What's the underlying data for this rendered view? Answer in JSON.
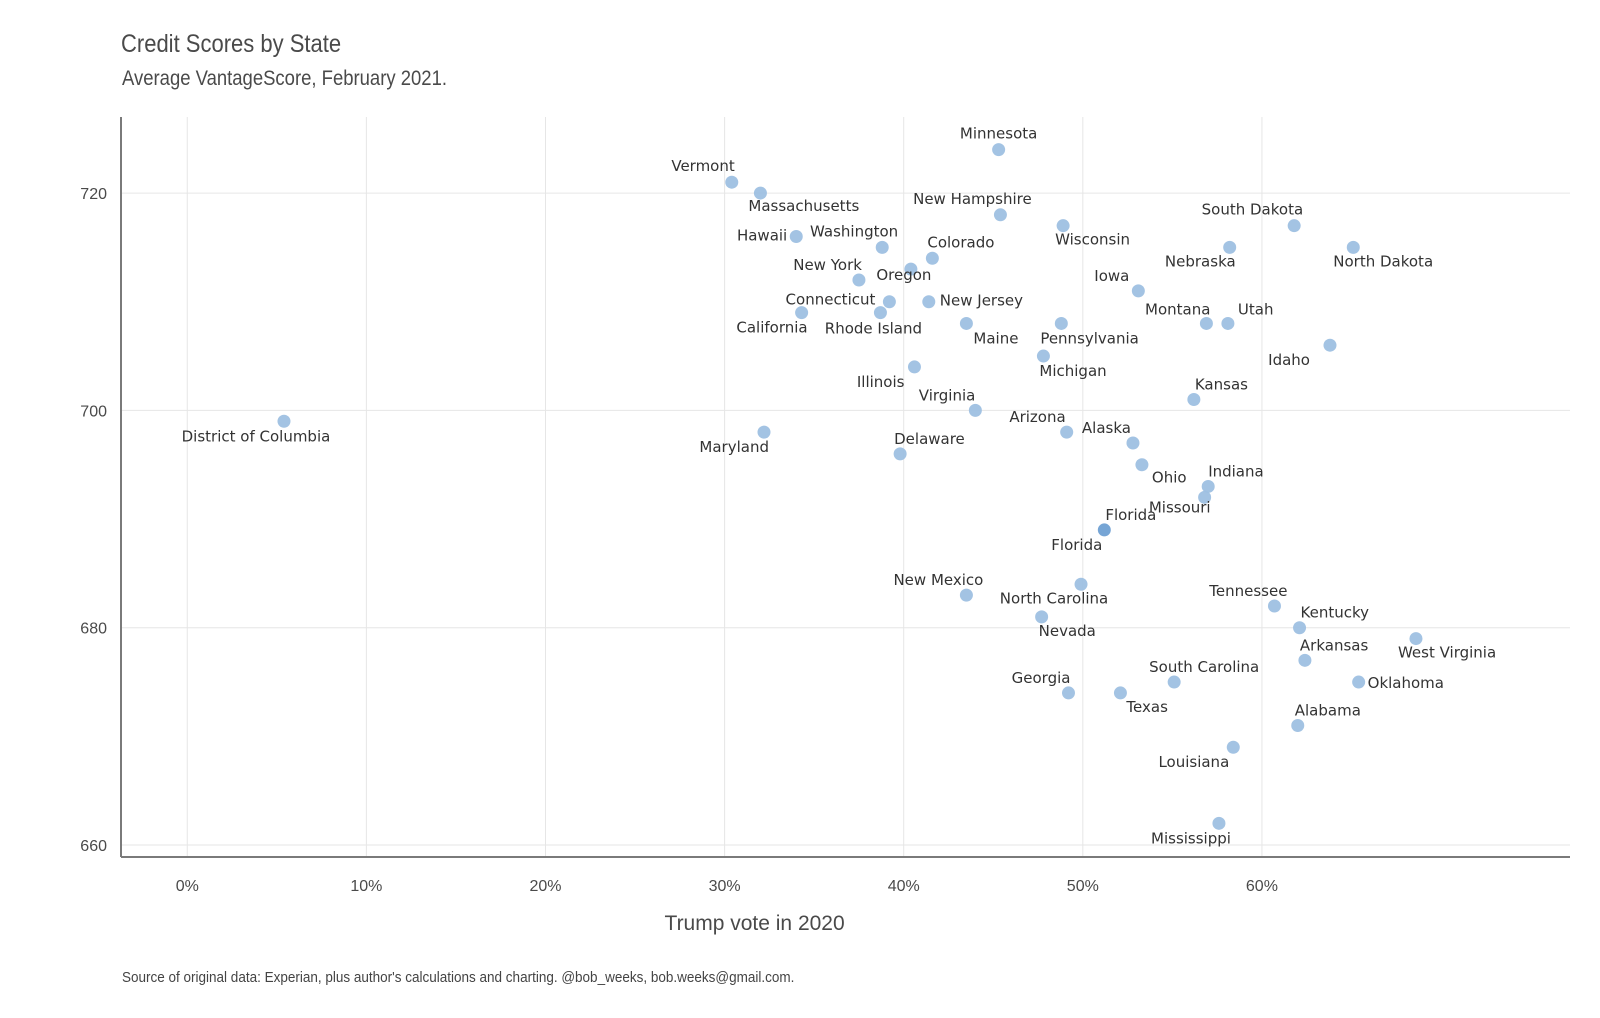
{
  "chart_data": {
    "type": "scatter",
    "title": "Credit Scores by State",
    "subtitle": "Average VantageScore, February 2021.",
    "xlabel": "Trump vote in 2020",
    "ylabel": "",
    "caption": "Source of original data: Experian, plus author's calculations and charting. @bob_weeks, bob.weeks@gmail.com.",
    "xlim": [
      -3.7,
      77.2
    ],
    "ylim": [
      658.9,
      727.0
    ],
    "x_ticks": [
      0,
      10,
      20,
      30,
      40,
      50,
      60
    ],
    "x_tick_labels": [
      "0%",
      "10%",
      "20%",
      "30%",
      "40%",
      "50%",
      "60%"
    ],
    "y_ticks": [
      660,
      680,
      700,
      720
    ],
    "y_tick_labels": [
      "660",
      "680",
      "700",
      "720"
    ],
    "grid": true,
    "point_color": "#9ec0e2",
    "highlight_color": "#6fa0d3",
    "points": [
      {
        "label": "Minnesota",
        "x": 45.3,
        "y": 724,
        "anchor": "middle",
        "dx": 0,
        "dy": -11
      },
      {
        "label": "Vermont",
        "x": 30.4,
        "y": 721,
        "anchor": "end",
        "dx": 3,
        "dy": -11
      },
      {
        "label": "Massachusetts",
        "x": 32.0,
        "y": 720,
        "anchor": "start",
        "dx": -12,
        "dy": 18
      },
      {
        "label": "New Hampshire",
        "x": 45.4,
        "y": 718,
        "anchor": "middle",
        "dx": -28,
        "dy": -11
      },
      {
        "label": "Wisconsin",
        "x": 48.9,
        "y": 717,
        "anchor": "start",
        "dx": -8,
        "dy": 19
      },
      {
        "label": "South Dakota",
        "x": 61.8,
        "y": 717,
        "anchor": "end",
        "dx": 9,
        "dy": -11
      },
      {
        "label": "Hawaii",
        "x": 34.0,
        "y": 716,
        "anchor": "end",
        "dx": -9,
        "dy": 4
      },
      {
        "label": "Washington",
        "x": 38.8,
        "y": 715,
        "anchor": "end",
        "dx": 16,
        "dy": -11
      },
      {
        "label": "Nebraska",
        "x": 58.2,
        "y": 715,
        "anchor": "end",
        "dx": 6,
        "dy": 19
      },
      {
        "label": "North Dakota",
        "x": 65.1,
        "y": 715,
        "anchor": "start",
        "dx": -20,
        "dy": 19
      },
      {
        "label": "Colorado",
        "x": 41.6,
        "y": 714,
        "anchor": "start",
        "dx": -5,
        "dy": -11
      },
      {
        "label": "Oregon",
        "x": 40.4,
        "y": 713,
        "anchor": "middle",
        "dx": -7,
        "dy": 11
      },
      {
        "label": "New York",
        "x": 37.5,
        "y": 712,
        "anchor": "end",
        "dx": 3,
        "dy": -10
      },
      {
        "label": "Iowa",
        "x": 53.1,
        "y": 711,
        "anchor": "end",
        "dx": -9,
        "dy": -10
      },
      {
        "label": "Connecticut",
        "x": 39.2,
        "y": 710,
        "anchor": "end",
        "dx": -14,
        "dy": 3
      },
      {
        "label": "New Jersey",
        "x": 41.4,
        "y": 710,
        "anchor": "start",
        "dx": 11,
        "dy": 4
      },
      {
        "label": "California",
        "x": 34.3,
        "y": 709,
        "anchor": "end",
        "dx": 6,
        "dy": 20
      },
      {
        "label": "Rhode Island",
        "x": 38.7,
        "y": 709,
        "anchor": "middle",
        "dx": -7,
        "dy": 21
      },
      {
        "label": "Maine",
        "x": 43.5,
        "y": 708,
        "anchor": "start",
        "dx": 7,
        "dy": 20
      },
      {
        "label": "Pennsylvania",
        "x": 48.8,
        "y": 708,
        "anchor": "start",
        "dx": -21,
        "dy": 20
      },
      {
        "label": "Montana",
        "x": 56.9,
        "y": 708,
        "anchor": "end",
        "dx": 4,
        "dy": -9
      },
      {
        "label": "Utah",
        "x": 58.1,
        "y": 708,
        "anchor": "start",
        "dx": 10,
        "dy": -9
      },
      {
        "label": "Idaho",
        "x": 63.8,
        "y": 706,
        "anchor": "end",
        "dx": -20,
        "dy": 20
      },
      {
        "label": "Michigan",
        "x": 47.8,
        "y": 705,
        "anchor": "start",
        "dx": -4,
        "dy": 20
      },
      {
        "label": "Illinois",
        "x": 40.6,
        "y": 704,
        "anchor": "end",
        "dx": -10,
        "dy": 20
      },
      {
        "label": "Kansas",
        "x": 56.2,
        "y": 701,
        "anchor": "start",
        "dx": 1,
        "dy": -10
      },
      {
        "label": "Virginia",
        "x": 44.0,
        "y": 700,
        "anchor": "end",
        "dx": 0,
        "dy": -10
      },
      {
        "label": "District of Columbia",
        "x": 5.4,
        "y": 699,
        "anchor": "middle",
        "dx": -28,
        "dy": 20
      },
      {
        "label": "Arizona",
        "x": 49.1,
        "y": 698,
        "anchor": "end",
        "dx": -1,
        "dy": -10
      },
      {
        "label": "Maryland",
        "x": 32.2,
        "y": 698,
        "anchor": "end",
        "dx": 5,
        "dy": 20
      },
      {
        "label": "Alaska",
        "x": 52.8,
        "y": 697,
        "anchor": "end",
        "dx": -2,
        "dy": -10
      },
      {
        "label": "Delaware",
        "x": 39.8,
        "y": 696,
        "anchor": "start",
        "dx": -6,
        "dy": -10
      },
      {
        "label": "Ohio",
        "x": 53.3,
        "y": 695,
        "anchor": "start",
        "dx": 10,
        "dy": 18
      },
      {
        "label": "Indiana",
        "x": 57.0,
        "y": 693,
        "anchor": "start",
        "dx": 0,
        "dy": -10
      },
      {
        "label": "Missouri",
        "x": 56.8,
        "y": 692,
        "anchor": "end",
        "dx": 6,
        "dy": 15
      },
      {
        "label": "Florida",
        "x": 51.2,
        "y": 689,
        "anchor": "start",
        "dx": 1,
        "dy": -10
      },
      {
        "label": "Florida",
        "x": 51.2,
        "y": 689,
        "anchor": "end",
        "dx": -2,
        "dy": 20
      },
      {
        "label": "North Carolina",
        "x": 49.9,
        "y": 684,
        "anchor": "middle",
        "dx": -27,
        "dy": 19
      },
      {
        "label": "New Mexico",
        "x": 43.5,
        "y": 683,
        "anchor": "middle",
        "dx": -28,
        "dy": -10
      },
      {
        "label": "Tennessee",
        "x": 60.7,
        "y": 682,
        "anchor": "end",
        "dx": 13,
        "dy": -10
      },
      {
        "label": "Nevada",
        "x": 47.7,
        "y": 681,
        "anchor": "start",
        "dx": -3,
        "dy": 19
      },
      {
        "label": "Kentucky",
        "x": 62.1,
        "y": 680,
        "anchor": "start",
        "dx": 1,
        "dy": -10
      },
      {
        "label": "West Virginia",
        "x": 68.6,
        "y": 679,
        "anchor": "start",
        "dx": -18,
        "dy": 19
      },
      {
        "label": "Arkansas",
        "x": 62.4,
        "y": 677,
        "anchor": "start",
        "dx": -5,
        "dy": -10
      },
      {
        "label": "South Carolina",
        "x": 55.1,
        "y": 675,
        "anchor": "start",
        "dx": -25,
        "dy": -10
      },
      {
        "label": "Oklahoma",
        "x": 65.4,
        "y": 675,
        "anchor": "start",
        "dx": 9,
        "dy": 6
      },
      {
        "label": "Georgia",
        "x": 49.2,
        "y": 674,
        "anchor": "end",
        "dx": 2,
        "dy": -10
      },
      {
        "label": "Texas",
        "x": 52.1,
        "y": 674,
        "anchor": "start",
        "dx": 6,
        "dy": 19
      },
      {
        "label": "Alabama",
        "x": 62.0,
        "y": 671,
        "anchor": "start",
        "dx": -3,
        "dy": -10
      },
      {
        "label": "Louisiana",
        "x": 58.4,
        "y": 669,
        "anchor": "end",
        "dx": -4,
        "dy": 20
      },
      {
        "label": "Mississippi",
        "x": 57.6,
        "y": 662,
        "anchor": "end",
        "dx": 12,
        "dy": 20
      }
    ]
  }
}
